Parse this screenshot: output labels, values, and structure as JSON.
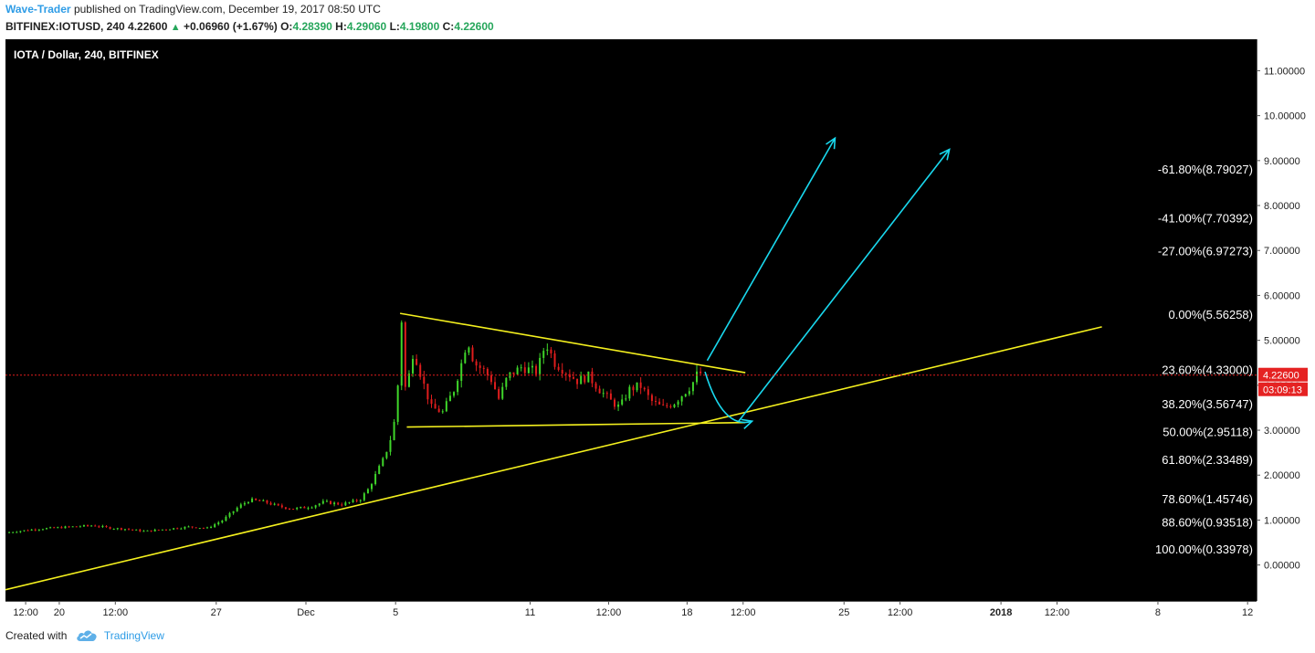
{
  "header": {
    "author": "Wave-Trader",
    "published_text": "published on TradingView.com, December 19, 2017 08:50 UTC",
    "symbol": "BITFINEX:IOTUSD, 240",
    "last": "4.22600",
    "change": "+0.06960 (+1.67%)",
    "o_label": "O:",
    "o": "4.28390",
    "h_label": "H:",
    "h": "4.29060",
    "l_label": "L:",
    "l": "4.19800",
    "c_label": "C:",
    "c": "4.22600"
  },
  "footer": {
    "created_with": "Created with",
    "brand": "TradingView",
    "logo_icon": "tradingview-cloud-icon"
  },
  "chart_data": {
    "type": "candlestick",
    "title": "IOTA / Dollar, 240, BITFINEX",
    "y_range": [
      -0.8,
      11.7
    ],
    "y_ticks": [
      "11.00000",
      "10.00000",
      "9.00000",
      "8.00000",
      "7.00000",
      "6.00000",
      "5.00000",
      "4.00000",
      "3.00000",
      "2.00000",
      "1.00000",
      "0.00000"
    ],
    "y_tick_values": [
      11,
      10,
      9,
      8,
      7,
      6,
      5,
      4,
      3,
      2,
      1,
      0
    ],
    "x_tick_labels": [
      "12:00",
      "20",
      "12:00",
      "27",
      "Dec",
      "5",
      "11",
      "12:00",
      "18",
      "12:00",
      "25",
      "12:00",
      "2018",
      "12:00",
      "8",
      "12"
    ],
    "x_tick_days": [
      18.5,
      20,
      22.5,
      27,
      31,
      35,
      41,
      44.5,
      48,
      50.5,
      55,
      57.5,
      62,
      64.5,
      69,
      73
    ],
    "x_range": [
      17.6,
      73.4
    ],
    "bold_tick": "2018",
    "current_price": {
      "label": "4.22600",
      "value": 4.226,
      "countdown": "03:09:13"
    },
    "fibonacci": [
      {
        "label": "-61.80%(8.79027)",
        "value": 8.79027
      },
      {
        "label": "-41.00%(7.70392)",
        "value": 7.70392
      },
      {
        "label": "-27.00%(6.97273)",
        "value": 6.97273
      },
      {
        "label": "0.00%(5.56258)",
        "value": 5.56258
      },
      {
        "label": "23.60%(4.33000)",
        "value": 4.33
      },
      {
        "label": "38.20%(3.56747)",
        "value": 3.56747
      },
      {
        "label": "50.00%(2.95118)",
        "value": 2.95118
      },
      {
        "label": "61.80%(2.33489)",
        "value": 2.33489
      },
      {
        "label": "78.60%(1.45746)",
        "value": 1.45746
      },
      {
        "label": "88.60%(0.93518)",
        "value": 0.93518
      },
      {
        "label": "100.00%(0.33978)",
        "value": 0.33978
      }
    ],
    "price_path": [
      [
        17.6,
        0.72
      ],
      [
        19.0,
        0.8
      ],
      [
        20.5,
        0.85
      ],
      [
        21.5,
        0.88
      ],
      [
        22.3,
        0.82
      ],
      [
        23.0,
        0.8
      ],
      [
        23.8,
        0.75
      ],
      [
        24.8,
        0.8
      ],
      [
        25.8,
        0.85
      ],
      [
        26.6,
        0.82
      ],
      [
        27.3,
        1.0
      ],
      [
        28.0,
        1.3
      ],
      [
        28.5,
        1.45
      ],
      [
        29.2,
        1.4
      ],
      [
        29.8,
        1.3
      ],
      [
        30.5,
        1.25
      ],
      [
        31.2,
        1.3
      ],
      [
        31.8,
        1.4
      ],
      [
        32.6,
        1.35
      ],
      [
        33.4,
        1.45
      ],
      [
        33.8,
        1.7
      ],
      [
        34.1,
        2.0
      ],
      [
        34.5,
        2.4
      ],
      [
        34.9,
        3.0
      ],
      [
        35.1,
        4.0
      ],
      [
        35.25,
        5.6
      ],
      [
        35.45,
        3.8
      ],
      [
        35.8,
        4.8
      ],
      [
        36.2,
        4.1
      ],
      [
        36.6,
        3.5
      ],
      [
        37.1,
        3.4
      ],
      [
        37.6,
        3.9
      ],
      [
        38.0,
        4.6
      ],
      [
        38.2,
        5.05
      ],
      [
        38.5,
        4.5
      ],
      [
        39.0,
        4.3
      ],
      [
        39.3,
        4.1
      ],
      [
        39.6,
        3.7
      ],
      [
        40.0,
        4.2
      ],
      [
        40.6,
        4.4
      ],
      [
        41.3,
        4.3
      ],
      [
        41.7,
        4.95
      ],
      [
        42.1,
        4.5
      ],
      [
        42.6,
        4.3
      ],
      [
        43.1,
        4.1
      ],
      [
        43.6,
        4.2
      ],
      [
        44.1,
        3.9
      ],
      [
        44.6,
        3.65
      ],
      [
        45.0,
        3.5
      ],
      [
        45.4,
        3.9
      ],
      [
        45.9,
        4.0
      ],
      [
        46.4,
        3.65
      ],
      [
        46.9,
        3.5
      ],
      [
        47.4,
        3.6
      ],
      [
        47.8,
        3.8
      ],
      [
        48.2,
        4.0
      ],
      [
        48.5,
        4.3
      ],
      [
        48.7,
        4.23
      ]
    ],
    "drawings": {
      "triangle_upper": [
        [
          35.2,
          5.6
        ],
        [
          50.6,
          4.28
        ]
      ],
      "triangle_lower": [
        [
          35.5,
          3.07
        ],
        [
          50.6,
          3.17
        ]
      ],
      "support_line": [
        [
          17.6,
          -0.55
        ],
        [
          66.5,
          5.3
        ]
      ],
      "arrows": [
        {
          "from": [
            48.9,
            4.55
          ],
          "to": [
            54.6,
            9.5
          ]
        },
        {
          "from": [
            50.3,
            3.2
          ],
          "to": [
            59.7,
            9.25
          ]
        }
      ],
      "curved_arrow": {
        "from": [
          48.8,
          4.3
        ],
        "ctrl": [
          49.6,
          3.0
        ],
        "to": [
          50.9,
          3.2
        ]
      }
    }
  }
}
